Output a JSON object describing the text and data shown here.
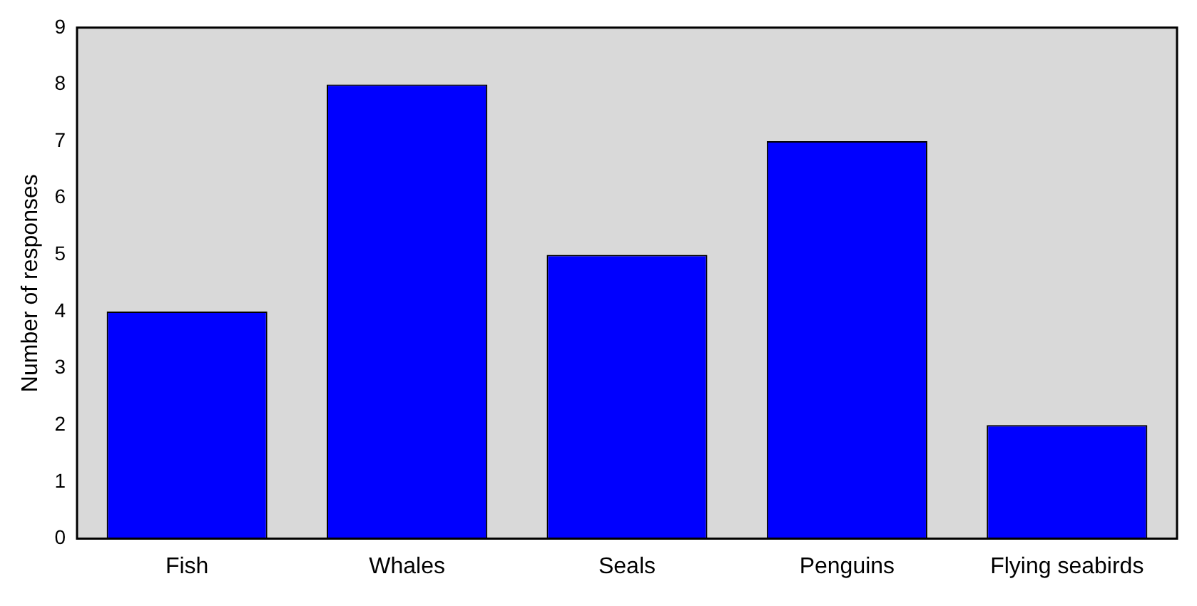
{
  "chart_data": {
    "type": "bar",
    "ylabel": "Number of responses",
    "categories": [
      "Fish",
      "Whales",
      "Seals",
      "Penguins",
      "Flying seabirds"
    ],
    "values": [
      4,
      8,
      5,
      7,
      2
    ],
    "color": "#0000ff",
    "ylim": [
      0,
      9
    ],
    "yticks": [
      0,
      1,
      2,
      3,
      4,
      5,
      6,
      7,
      8,
      9
    ],
    "grid": false,
    "legend": false
  }
}
